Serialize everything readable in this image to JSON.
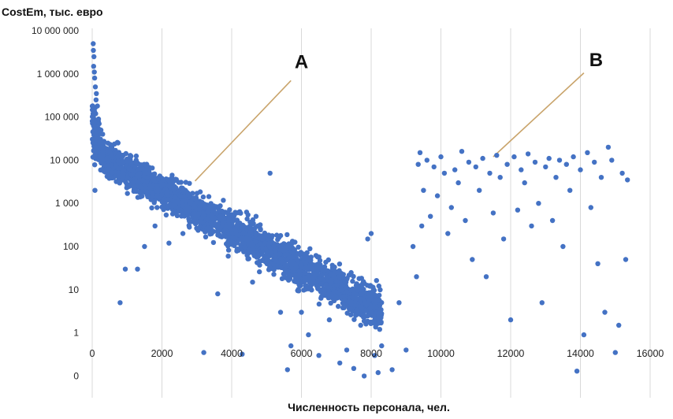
{
  "chart_data": {
    "type": "scatter",
    "title": "CostEm, тыс. евро",
    "xlabel": "Численность персонала, чел.",
    "ylabel": "CostEm, тыс. евро",
    "xlim": [
      0,
      16500
    ],
    "x_ticks": [
      0,
      2000,
      4000,
      6000,
      8000,
      10000,
      12000,
      14000,
      16000
    ],
    "x_tick_labels": [
      "0",
      "2000",
      "4000",
      "6000",
      "8000",
      "10000",
      "12000",
      "14000",
      "16000"
    ],
    "y_scale": "log",
    "y_tick_labels": [
      "10 000 000",
      "1 000 000",
      "100 000",
      "10 000",
      "1 000",
      "100",
      "10",
      "1",
      "0"
    ],
    "grid": "vertical",
    "marker_color": "#4472c4",
    "annotation_line_color": "#c9a46b",
    "annotations": [
      {
        "label": "A",
        "text_x": 6000,
        "text_y": 2000000,
        "line_from": [
          5700,
          700000
        ],
        "line_to": [
          2950,
          3300
        ]
      },
      {
        "label": "B",
        "text_x": 14450,
        "text_y": 2200000,
        "line_from": [
          14100,
          1050000
        ],
        "line_to": [
          11500,
          12000
        ]
      }
    ],
    "clusters": {
      "A": "x 0–8300, CostEm falling from ~5 000 000 to ~10",
      "B": "x 9000–15400, CostEm ~0.3–20 000"
    },
    "series": [
      {
        "points": [
          [
            30,
            5000000
          ],
          [
            35,
            3500000
          ],
          [
            50,
            2500000
          ],
          [
            40,
            1500000
          ],
          [
            60,
            1100000
          ],
          [
            70,
            800000
          ],
          [
            90,
            500000
          ],
          [
            120,
            350000
          ],
          [
            110,
            250000
          ],
          [
            150,
            180000
          ],
          [
            100,
            120000
          ],
          [
            180,
            90000
          ],
          [
            200,
            70000
          ],
          [
            60,
            60000
          ],
          [
            250,
            50000
          ],
          [
            300,
            40000
          ],
          [
            80,
            2000
          ],
          [
            800,
            5
          ],
          [
            950,
            30
          ],
          [
            1300,
            30
          ],
          [
            1500,
            100
          ],
          [
            1800,
            300
          ],
          [
            2200,
            120
          ],
          [
            2600,
            200
          ],
          [
            3200,
            0.35
          ],
          [
            3600,
            8
          ],
          [
            3900,
            60
          ],
          [
            4300,
            0.32
          ],
          [
            4600,
            15
          ],
          [
            5100,
            5000
          ],
          [
            5400,
            3
          ],
          [
            5700,
            0.5
          ],
          [
            5800,
            40
          ],
          [
            6000,
            3
          ],
          [
            6200,
            0.9
          ],
          [
            6500,
            0.3
          ],
          [
            5600,
            0.14
          ],
          [
            6800,
            2
          ],
          [
            7100,
            0.2
          ],
          [
            7300,
            0.4
          ],
          [
            7500,
            0.15
          ],
          [
            7700,
            1.5
          ],
          [
            7800,
            0.1
          ],
          [
            8100,
            0.3
          ],
          [
            8300,
            0.5
          ],
          [
            8600,
            0.14
          ],
          [
            8800,
            5
          ],
          [
            9000,
            0.4
          ],
          [
            8200,
            0.12
          ],
          [
            7900,
            150
          ],
          [
            8000,
            200
          ],
          [
            9200,
            100
          ],
          [
            9300,
            20
          ],
          [
            9350,
            8000
          ],
          [
            9400,
            15000
          ],
          [
            9450,
            300
          ],
          [
            9500,
            2000
          ],
          [
            9600,
            10000
          ],
          [
            9700,
            500
          ],
          [
            9800,
            7000
          ],
          [
            9900,
            1500
          ],
          [
            10000,
            12000
          ],
          [
            10100,
            5000
          ],
          [
            10200,
            200
          ],
          [
            10300,
            800
          ],
          [
            10400,
            6000
          ],
          [
            10500,
            3000
          ],
          [
            10600,
            16000
          ],
          [
            10700,
            400
          ],
          [
            10800,
            9000
          ],
          [
            10900,
            50
          ],
          [
            11000,
            7000
          ],
          [
            11100,
            2000
          ],
          [
            11200,
            11000
          ],
          [
            11300,
            20
          ],
          [
            11400,
            5000
          ],
          [
            11500,
            600
          ],
          [
            11600,
            13000
          ],
          [
            11700,
            4000
          ],
          [
            11800,
            150
          ],
          [
            11900,
            8000
          ],
          [
            12000,
            2
          ],
          [
            12100,
            12000
          ],
          [
            12200,
            700
          ],
          [
            12300,
            6000
          ],
          [
            12400,
            3000
          ],
          [
            12500,
            14000
          ],
          [
            12600,
            300
          ],
          [
            12700,
            9000
          ],
          [
            12800,
            1000
          ],
          [
            12900,
            5
          ],
          [
            13000,
            7000
          ],
          [
            13100,
            11000
          ],
          [
            13200,
            400
          ],
          [
            13300,
            4000
          ],
          [
            13400,
            10000
          ],
          [
            13500,
            100
          ],
          [
            13600,
            8000
          ],
          [
            13700,
            2000
          ],
          [
            13800,
            12000
          ],
          [
            13900,
            0.13
          ],
          [
            14000,
            6000
          ],
          [
            14100,
            0.9
          ],
          [
            14200,
            15000
          ],
          [
            14300,
            800
          ],
          [
            14400,
            9000
          ],
          [
            14500,
            40
          ],
          [
            14600,
            4000
          ],
          [
            14700,
            3
          ],
          [
            14800,
            20000
          ],
          [
            14900,
            10000
          ],
          [
            15000,
            0.35
          ],
          [
            15100,
            1.5
          ],
          [
            15200,
            5000
          ],
          [
            15300,
            50
          ],
          [
            15350,
            3500
          ]
        ]
      }
    ]
  }
}
